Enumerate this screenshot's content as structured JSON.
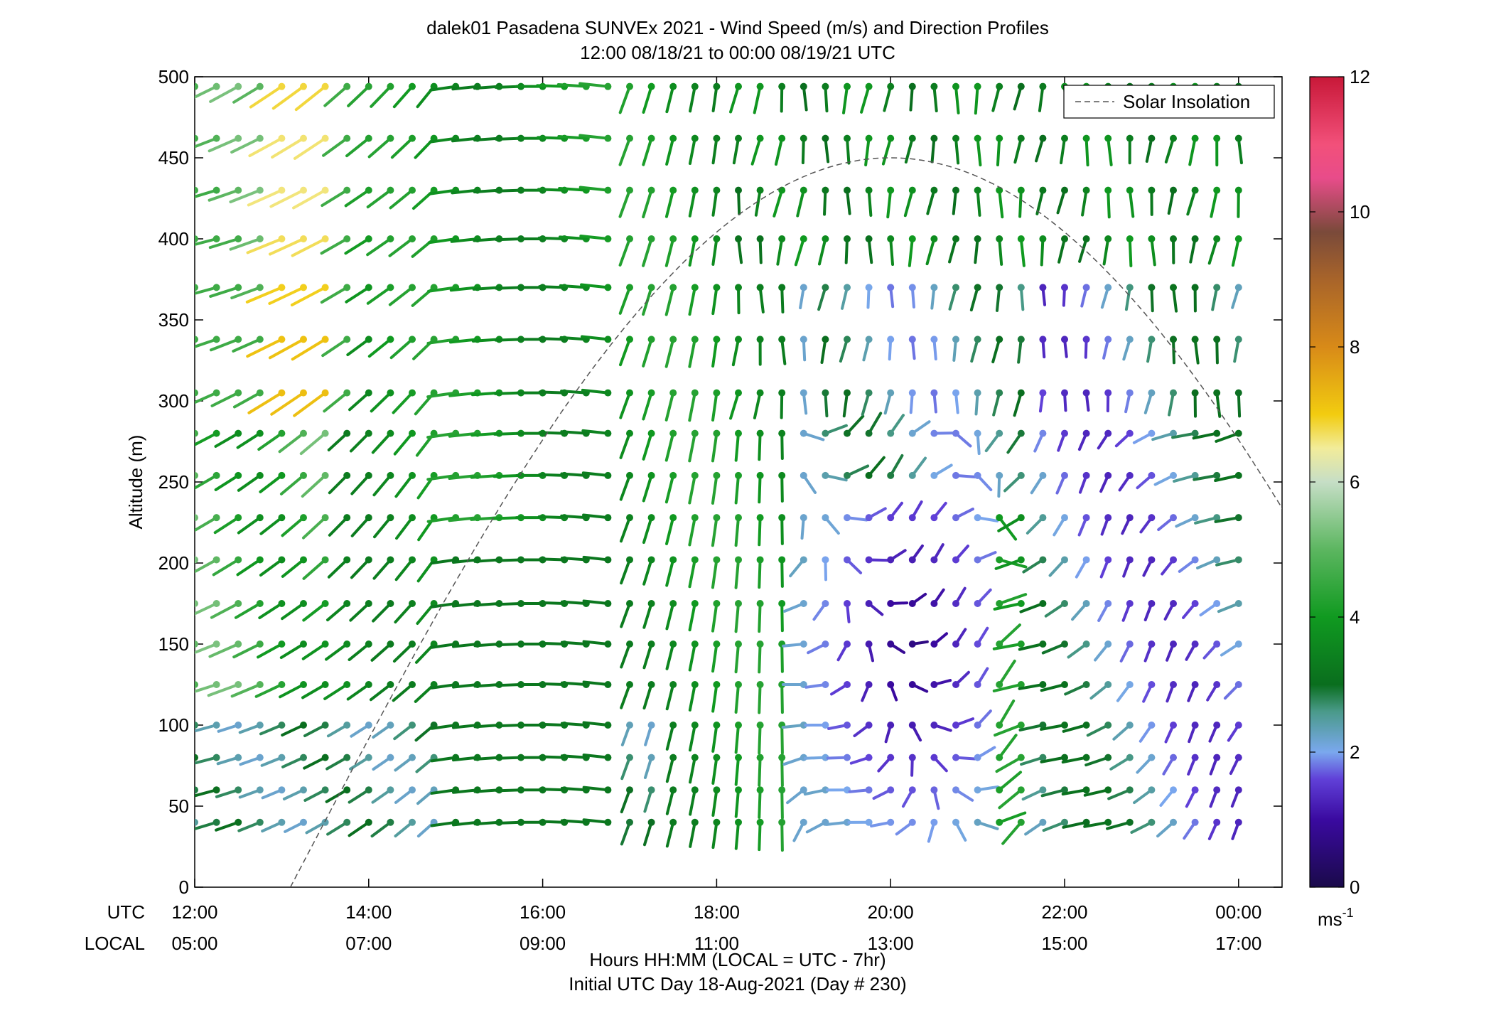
{
  "chart_data": {
    "type": "wind-profile",
    "title": "dalek01 Pasadena SUNVEx 2021 - Wind Speed (m/s) and Direction Profiles",
    "subtitle": "12:00 08/18/21 to 00:00 08/19/21  UTC",
    "ylabel": "Altitude (m)",
    "xlabel": "Hours HH:MM  (LOCAL = UTC - 7hr)",
    "xlabel2": "Initial UTC Day 18-Aug-2021 (Day # 230)",
    "xlim": [
      12,
      24.5
    ],
    "ylim": [
      0,
      500
    ],
    "yticks": [
      "0",
      "50",
      "100",
      "150",
      "200",
      "250",
      "300",
      "350",
      "400",
      "450",
      "500"
    ],
    "xticks_utc": [
      "12:00",
      "14:00",
      "16:00",
      "18:00",
      "20:00",
      "22:00",
      "00:00"
    ],
    "xticks_local": [
      "05:00",
      "07:00",
      "09:00",
      "11:00",
      "13:00",
      "15:00",
      "17:00"
    ],
    "row_label_utc": "UTC",
    "row_label_local": "LOCAL",
    "altitudes": [
      40,
      60,
      80,
      100,
      125,
      150,
      175,
      202,
      228,
      254,
      280,
      305,
      338,
      370,
      400,
      430,
      462,
      494
    ],
    "times_start": 12.0,
    "times_step": 0.25,
    "times_count": 49,
    "legend": {
      "entry": "Solar Insolation",
      "position": "top-right"
    },
    "colorbar": {
      "min": 0,
      "max": 12,
      "ticks": [
        "0",
        "2",
        "4",
        "6",
        "8",
        "10",
        "12"
      ],
      "unit": "ms",
      "unit_sup": "-1",
      "stops": [
        [
          0.0,
          "#1a0a4a"
        ],
        [
          1.0,
          "#3a0aa0"
        ],
        [
          1.6,
          "#6040d8"
        ],
        [
          2.0,
          "#7aa8ee"
        ],
        [
          2.6,
          "#4a9a8a"
        ],
        [
          3.0,
          "#0a6e1e"
        ],
        [
          4.0,
          "#109a20"
        ],
        [
          5.0,
          "#5cb660"
        ],
        [
          6.0,
          "#c6dec6"
        ],
        [
          6.5,
          "#f2ec9a"
        ],
        [
          7.0,
          "#f2cc10"
        ],
        [
          8.0,
          "#d88a18"
        ],
        [
          9.0,
          "#a8642a"
        ],
        [
          9.7,
          "#7a4a3a"
        ],
        [
          10.5,
          "#e84c8a"
        ],
        [
          11.0,
          "#f2507a"
        ],
        [
          12.0,
          "#c81838"
        ]
      ]
    },
    "solar_insolation_curve": {
      "sunrise": 13.1,
      "noon": 20.0,
      "peak": 450
    }
  }
}
